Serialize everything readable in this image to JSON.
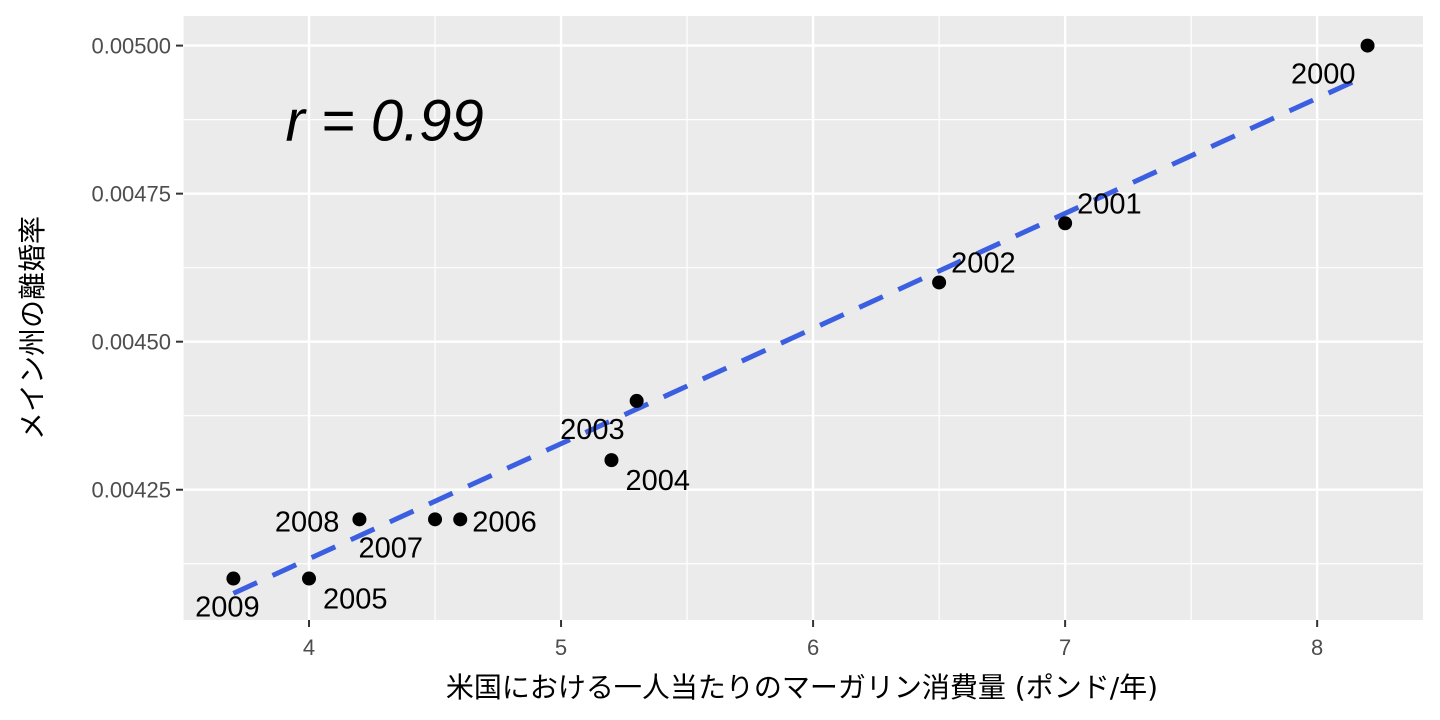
{
  "chart_data": {
    "type": "scatter",
    "xlabel": "米国における一人当たりのマーガリン消費量 (ポンド/年)",
    "ylabel": "メイン州の離婚率",
    "xlim": [
      3.5,
      8.42
    ],
    "ylim": [
      0.00403,
      0.00505
    ],
    "x_ticks": [
      {
        "value": 4,
        "label": "4"
      },
      {
        "value": 5,
        "label": "5"
      },
      {
        "value": 6,
        "label": "6"
      },
      {
        "value": 7,
        "label": "7"
      },
      {
        "value": 8,
        "label": "8"
      }
    ],
    "y_ticks": [
      {
        "value": 0.00425,
        "label": "0.00425"
      },
      {
        "value": 0.0045,
        "label": "0.00450"
      },
      {
        "value": 0.00475,
        "label": "0.00475"
      },
      {
        "value": 0.005,
        "label": "0.00500"
      }
    ],
    "grid": true,
    "points": [
      {
        "label": "2000",
        "x": 8.2,
        "y": 0.005,
        "label_side": "below-left"
      },
      {
        "label": "2001",
        "x": 7.0,
        "y": 0.0047,
        "label_side": "above-right"
      },
      {
        "label": "2002",
        "x": 6.5,
        "y": 0.0046,
        "label_side": "above-right"
      },
      {
        "label": "2003",
        "x": 5.3,
        "y": 0.0044,
        "label_side": "below-left"
      },
      {
        "label": "2004",
        "x": 5.2,
        "y": 0.0043,
        "label_side": "below-right"
      },
      {
        "label": "2005",
        "x": 4.0,
        "y": 0.0041,
        "label_side": "below-right"
      },
      {
        "label": "2006",
        "x": 4.6,
        "y": 0.0042,
        "label_side": "right"
      },
      {
        "label": "2007",
        "x": 4.5,
        "y": 0.0042,
        "label_side": "below-left"
      },
      {
        "label": "2008",
        "x": 4.2,
        "y": 0.0042,
        "label_side": "left"
      },
      {
        "label": "2009",
        "x": 3.7,
        "y": 0.0041,
        "label_side": "below"
      }
    ],
    "trendline": {
      "style": "dashed",
      "color": "#3b5fe0",
      "x": [
        3.7,
        8.2
      ],
      "y": [
        0.004075,
        0.00495
      ]
    },
    "annotation": {
      "text": "r = 0.99",
      "x": 4.3,
      "y": 0.00487
    },
    "colors": {
      "panel": "#ebebeb",
      "grid": "#ffffff",
      "point": "#000000"
    }
  }
}
